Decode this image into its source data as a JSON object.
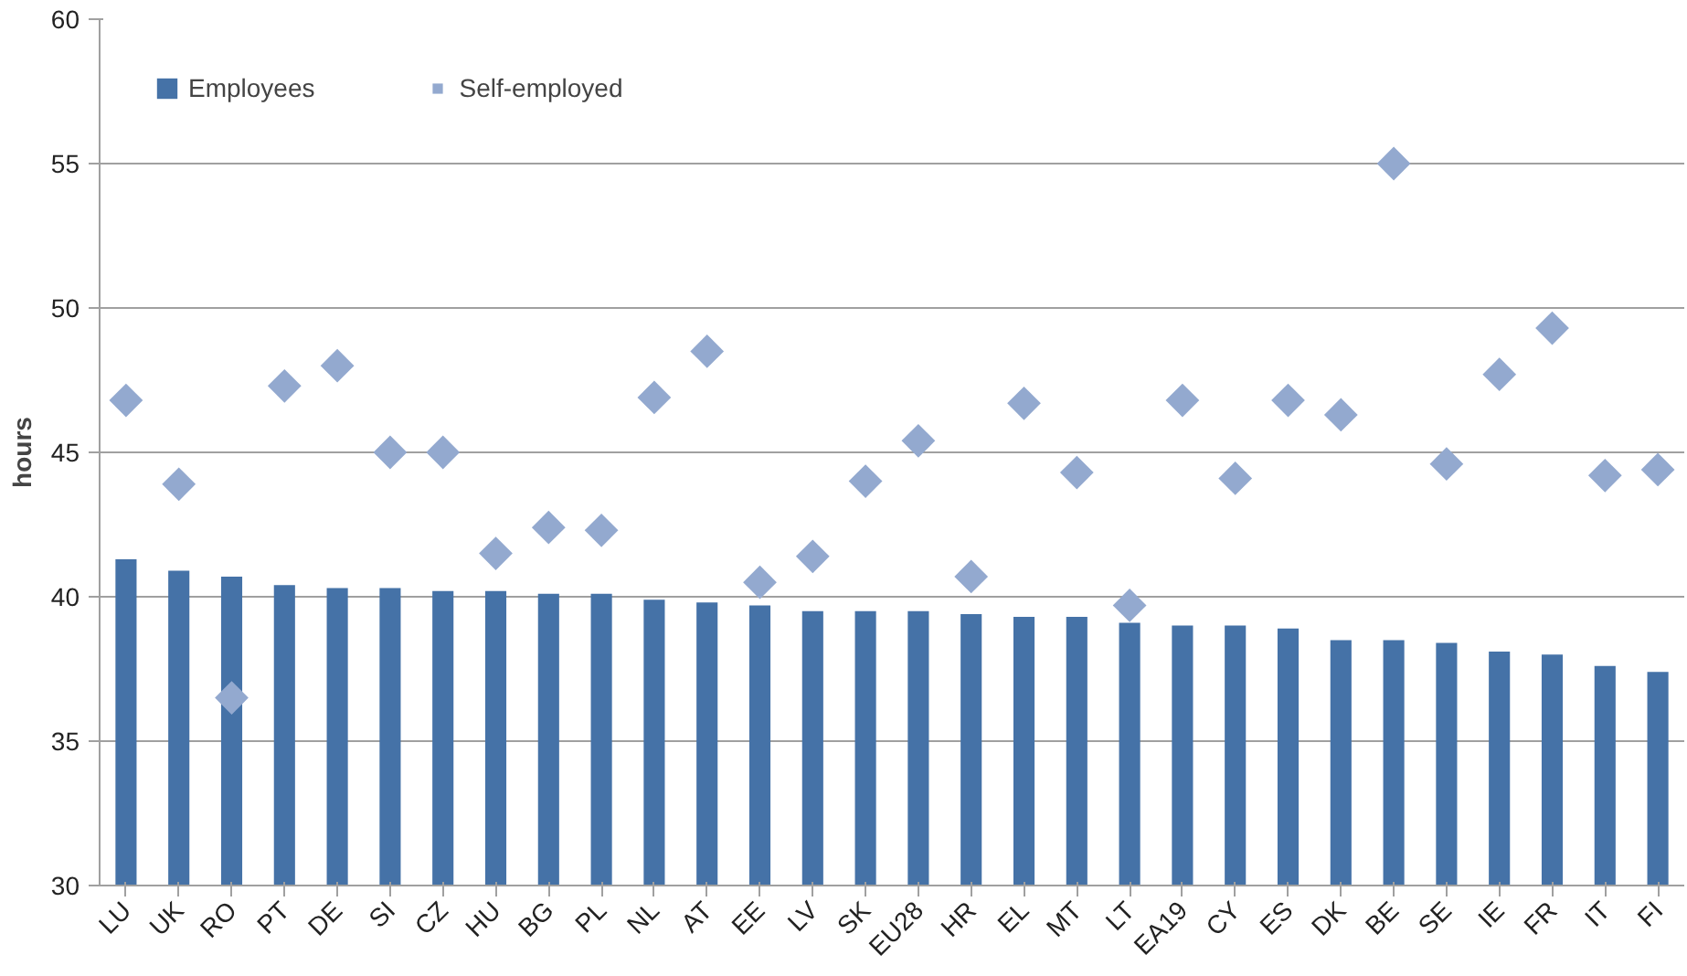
{
  "chart_data": {
    "type": "bar",
    "ylabel": "hours",
    "categories": [
      "LU",
      "UK",
      "RO",
      "PT",
      "DE",
      "SI",
      "CZ",
      "HU",
      "BG",
      "PL",
      "NL",
      "AT",
      "EE",
      "LV",
      "SK",
      "EU28",
      "HR",
      "EL",
      "MT",
      "LT",
      "EA19",
      "CY",
      "ES",
      "DK",
      "BE",
      "SE",
      "IE",
      "FR",
      "IT",
      "FI"
    ],
    "series": [
      {
        "name": "Employees",
        "color": "#4572a7",
        "values": [
          41.3,
          40.9,
          40.7,
          40.4,
          40.3,
          40.3,
          40.2,
          40.2,
          40.1,
          40.1,
          39.9,
          39.8,
          39.7,
          39.5,
          39.5,
          39.5,
          39.4,
          39.3,
          39.3,
          39.1,
          39.0,
          39.0,
          38.9,
          38.5,
          38.5,
          38.4,
          38.1,
          38.0,
          37.6,
          37.4
        ]
      },
      {
        "name": "Self-employed",
        "type": "scatter",
        "marker": "diamond",
        "color": "#93a9cf",
        "values": [
          46.8,
          43.9,
          36.5,
          47.3,
          48.0,
          45.0,
          45.0,
          41.5,
          42.4,
          42.3,
          46.9,
          48.5,
          40.5,
          41.4,
          44.0,
          45.4,
          40.7,
          46.7,
          44.3,
          39.7,
          46.8,
          44.1,
          46.8,
          46.3,
          55.0,
          44.6,
          47.7,
          49.3,
          44.2,
          44.4
        ]
      }
    ],
    "ylim": [
      30,
      60
    ],
    "yticks": [
      30,
      35,
      40,
      45,
      50,
      55,
      60
    ],
    "grid": "y",
    "legend": "top left"
  }
}
